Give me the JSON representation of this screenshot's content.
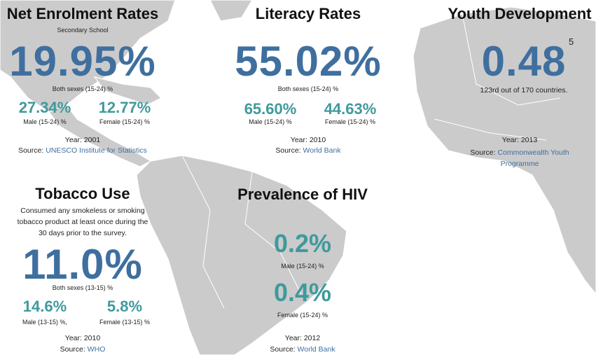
{
  "panels": [
    {
      "title": "Net Enrolment Rates",
      "subtitle": "Secondary School",
      "main_value": "19.95%",
      "main_label": "Both sexes (15-24) %",
      "sub": [
        {
          "value": "27.34%",
          "label": "Male (15-24) %"
        },
        {
          "value": "12.77%",
          "label": "Female (15-24) %"
        }
      ],
      "year": "Year: 2001",
      "source_prefix": "Source:",
      "source": "UNESCO Institute for Statistics"
    },
    {
      "title": "Literacy Rates",
      "main_value": "55.02%",
      "main_label": "Both sexes (15-24) %",
      "sub": [
        {
          "value": "65.60%",
          "label": "Male (15-24) %"
        },
        {
          "value": "44.63%",
          "label": "Female (15-24) %"
        }
      ],
      "year": "Year: 2010",
      "source_prefix": "Source:",
      "source": "World Bank"
    },
    {
      "title": "Youth Development",
      "main_value": "0.48",
      "superscript": "5",
      "main_label": "123rd out of 170 countries.",
      "year": "Year: 2013",
      "source_prefix": "Source:",
      "source": "Commonwealth Youth Programme"
    },
    {
      "title": "Tobacco Use",
      "description": "Consumed any smokeless or smoking tobacco product at least once during the 30 days prior to the survey.",
      "main_value": "11.0%",
      "main_label": "Both sexes (13-15) %",
      "sub": [
        {
          "value": "14.6%",
          "label": "Male (13-15) %,"
        },
        {
          "value": "5.8%",
          "label": "Female (13-15) %"
        }
      ],
      "year": "Year: 2010",
      "source_prefix": "Source:",
      "source": "WHO"
    },
    {
      "title": "Prevalence of HIV",
      "stats": [
        {
          "value": "0.2%",
          "label": "Male (15-24) %"
        },
        {
          "value": "0.4%",
          "label": "Female (15-24) %"
        }
      ],
      "year": "Year: 2012",
      "source_prefix": "Source:",
      "source": "World Bank"
    }
  ]
}
